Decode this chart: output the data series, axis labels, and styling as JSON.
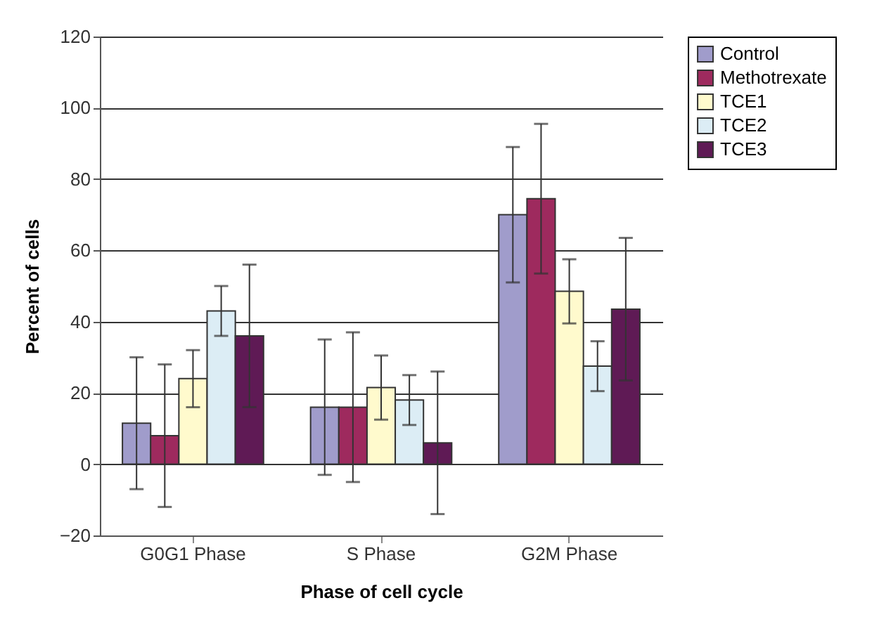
{
  "chart_data": {
    "type": "bar",
    "xlabel": "Phase of cell cycle",
    "ylabel": "Percent of cells",
    "categories": [
      "G0G1 Phase",
      "S Phase",
      "G2M Phase"
    ],
    "series": [
      {
        "name": "Control",
        "color": "#a09ccb",
        "values": [
          11.5,
          16,
          70
        ],
        "errors": [
          18.5,
          19,
          19
        ]
      },
      {
        "name": "Methotrexate",
        "color": "#9e2a5e",
        "values": [
          8,
          16,
          74.5
        ],
        "errors": [
          20,
          21,
          21
        ]
      },
      {
        "name": "TCE1",
        "color": "#fffacd",
        "values": [
          24,
          21.5,
          48.5
        ],
        "errors": [
          8,
          9,
          9
        ]
      },
      {
        "name": "TCE2",
        "color": "#dcedf5",
        "values": [
          43,
          18,
          27.5
        ],
        "errors": [
          7,
          7,
          7
        ]
      },
      {
        "name": "TCE3",
        "color": "#5f1a55",
        "values": [
          36,
          6,
          43.5
        ],
        "errors": [
          20,
          20,
          20
        ]
      }
    ],
    "ylim": [
      -20,
      120
    ],
    "yticks": [
      -20,
      0,
      20,
      40,
      60,
      80,
      100,
      120
    ],
    "grid": "y",
    "legend": "right"
  }
}
